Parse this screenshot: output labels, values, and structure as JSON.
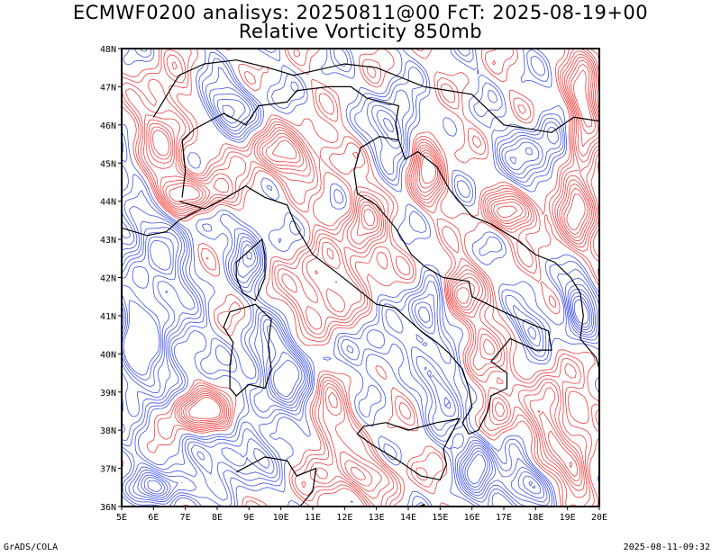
{
  "title_line1": "ECMWF0200 analisys: 20250811@00 FcT: 2025-08-19+00",
  "title_line2": "Relative Vorticity 850mb",
  "footer_left": "GrADS/COLA",
  "footer_right": "2025-08-11-09:32",
  "map": {
    "lon_range": [
      5,
      20
    ],
    "lat_range": [
      36,
      48
    ],
    "lon_ticks": [
      "5E",
      "6E",
      "7E",
      "8E",
      "9E",
      "10E",
      "11E",
      "12E",
      "13E",
      "14E",
      "15E",
      "16E",
      "17E",
      "18E",
      "19E",
      "20E"
    ],
    "lat_ticks": [
      "36N",
      "37N",
      "38N",
      "39N",
      "40N",
      "41N",
      "42N",
      "43N",
      "44N",
      "45N",
      "46N",
      "47N",
      "48N"
    ],
    "colors": {
      "positive_contour": "#f03c3c",
      "negative_contour": "#3c50e6",
      "coastline": "#000000"
    }
  }
}
